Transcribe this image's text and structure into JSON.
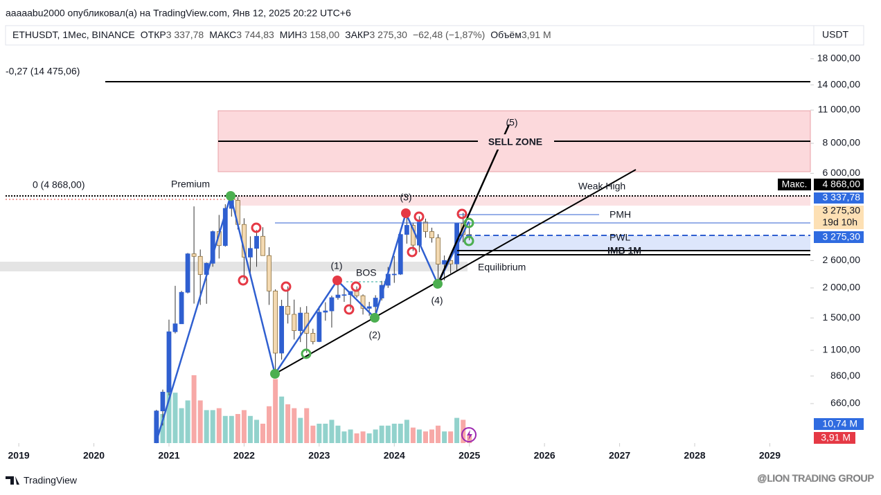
{
  "page": {
    "published": "aaaaabu2000 опубликовал(а) на TradingView.com, Янв 12, 2025 20:22 UTC+6",
    "symbol": "ETHUSDT, 1Мес, BINANCE",
    "open_label": "ОТКР",
    "open": "3 337,78",
    "high_label": "МАКС",
    "high": "3 744,83",
    "low_label": "МИН",
    "low": "3 158,00",
    "close_label": "ЗАКР",
    "close": "3 275,30",
    "change": "−62,48 (−1,87%)",
    "volume_label": "Объём",
    "volume": "3,91 M",
    "currency": "USDT",
    "max_tag": "Макс.",
    "max_price": "4 868,00",
    "open_price": "3 337,78",
    "last_price": "3 275,30",
    "countdown": "19d 10h",
    "last_price_2": "3 275,30",
    "volume_ma": "10,74 M",
    "volume_last": "3,91 M",
    "fib_top": "-0,27 (14 475,06)",
    "fib_zero": "0 (4 868,00)",
    "premium": "Premium",
    "weak_high": "Weak High",
    "equilibrium": "Equilibrium",
    "bos": "BOS",
    "pmh": "PMH",
    "pwl": "PWL",
    "imb": "IMB 1M",
    "sell_zone": "SELL ZONE",
    "waves": [
      "(1)",
      "(2)",
      "(3)",
      "(4)",
      "(5)"
    ],
    "brand": "TradingView",
    "watermark": "@LION TRADING GROUP"
  },
  "chart_data": {
    "type": "candlestick",
    "log_scale": true,
    "up_color": "#2f5fd0",
    "down_color": "#f3d9b1",
    "volume_up_color": "rgba(38,166,154,0.5)",
    "volume_down_color": "rgba(239,83,80,0.5)",
    "xlim": [
      2018.75,
      2029.54
    ],
    "xticks": [
      2019,
      2020,
      2021,
      2022,
      2023,
      2024,
      2025,
      2026,
      2027,
      2028,
      2029
    ],
    "ylim": [
      452,
      25900
    ],
    "yticks": [
      {
        "value": 18000,
        "label": "18 000,00"
      },
      {
        "value": 14000,
        "label": "14 000,00"
      },
      {
        "value": 11000,
        "label": "11 000,00"
      },
      {
        "value": 8000,
        "label": "8 000,00"
      },
      {
        "value": 6000,
        "label": "6 000,00"
      },
      {
        "value": 2600,
        "label": "2 600,00"
      },
      {
        "value": 2000,
        "label": "2 000,00"
      },
      {
        "value": 1500,
        "label": "1 500,00"
      },
      {
        "value": 1100,
        "label": "1 100,00"
      },
      {
        "value": 860,
        "label": "860,00"
      },
      {
        "value": 660,
        "label": "660,00"
      }
    ],
    "x": [
      2020.833,
      2020.917,
      2021,
      2021.083,
      2021.167,
      2021.25,
      2021.333,
      2021.417,
      2021.5,
      2021.583,
      2021.667,
      2021.75,
      2021.833,
      2021.917,
      2022,
      2022.083,
      2022.167,
      2022.25,
      2022.333,
      2022.417,
      2022.5,
      2022.583,
      2022.667,
      2022.75,
      2022.833,
      2022.917,
      2023,
      2023.083,
      2023.167,
      2023.25,
      2023.333,
      2023.417,
      2023.5,
      2023.583,
      2023.667,
      2023.75,
      2023.833,
      2023.917,
      2024,
      2024.083,
      2024.167,
      2024.25,
      2024.333,
      2024.417,
      2024.5,
      2024.583,
      2024.667,
      2024.75,
      2024.833,
      2024.917,
      2025
    ],
    "open": [
      386,
      615,
      737,
      1314,
      1418,
      1918,
      2773,
      2707,
      2275,
      2533,
      3433,
      3001,
      4288,
      4631,
      3676,
      2688,
      2922,
      3282,
      2727,
      1942,
      1071,
      1678,
      1553,
      1328,
      1572,
      1295,
      1196,
      1585,
      1605,
      1822,
      1869,
      1874,
      1934,
      1856,
      1645,
      1671,
      1815,
      2052,
      2282,
      2283,
      3340,
      3645,
      3014,
      3761,
      3434,
      3232,
      2513,
      2602,
      2518,
      3706,
      3337.78
    ],
    "high": [
      622,
      755,
      1476,
      2041,
      1944,
      2797,
      4372,
      2891,
      2551,
      3465,
      4027,
      4460,
      4868,
      4778,
      3900,
      3280,
      3483,
      3580,
      2955,
      1974,
      1785,
      2030,
      1788,
      1663,
      1680,
      1353,
      1680,
      1743,
      1857,
      2141,
      2000,
      1929,
      2029,
      1880,
      1750,
      1865,
      2139,
      2445,
      2717,
      3522,
      4093,
      3730,
      3977,
      3887,
      3563,
      3349,
      2730,
      2722,
      3683,
      4109,
      3744.83
    ],
    "low": [
      370,
      535,
      714,
      1293,
      1431,
      1898,
      1721,
      1700,
      1718,
      2451,
      2652,
      2971,
      3964,
      3503,
      2159,
      2300,
      2450,
      2774,
      1700,
      880,
      1006,
      1422,
      1220,
      1190,
      1073,
      1165,
      1190,
      1461,
      1368,
      1786,
      1750,
      1626,
      1822,
      1550,
      1530,
      1521,
      1772,
      2001,
      2100,
      2265,
      3058,
      2850,
      2818,
      3240,
      3088,
      2112,
      2150,
      2300,
      2357,
      3098,
      3158
    ],
    "close": [
      615,
      737,
      1314,
      1418,
      1918,
      2773,
      2707,
      2275,
      2533,
      3433,
      3001,
      4288,
      4631,
      3676,
      2688,
      2922,
      3282,
      2727,
      1942,
      1071,
      1678,
      1553,
      1328,
      1572,
      1295,
      1196,
      1585,
      1605,
      1822,
      1869,
      1874,
      1934,
      1856,
      1645,
      1671,
      1815,
      2052,
      2282,
      2283,
      3340,
      3645,
      3014,
      3761,
      3434,
      3232,
      2513,
      2602,
      2518,
      3706,
      3337,
      3275.3
    ],
    "volume": [
      13,
      15,
      30,
      26,
      18,
      22,
      35,
      22,
      17,
      17,
      18,
      14,
      14,
      15,
      17,
      14,
      12,
      10,
      19,
      33,
      24,
      20,
      18,
      13,
      18,
      9,
      10,
      10,
      12,
      9,
      6,
      7,
      5,
      6,
      5,
      7,
      9,
      9,
      10,
      10,
      12,
      8,
      7,
      6,
      7,
      9,
      6,
      6,
      13,
      12,
      3.91
    ]
  }
}
